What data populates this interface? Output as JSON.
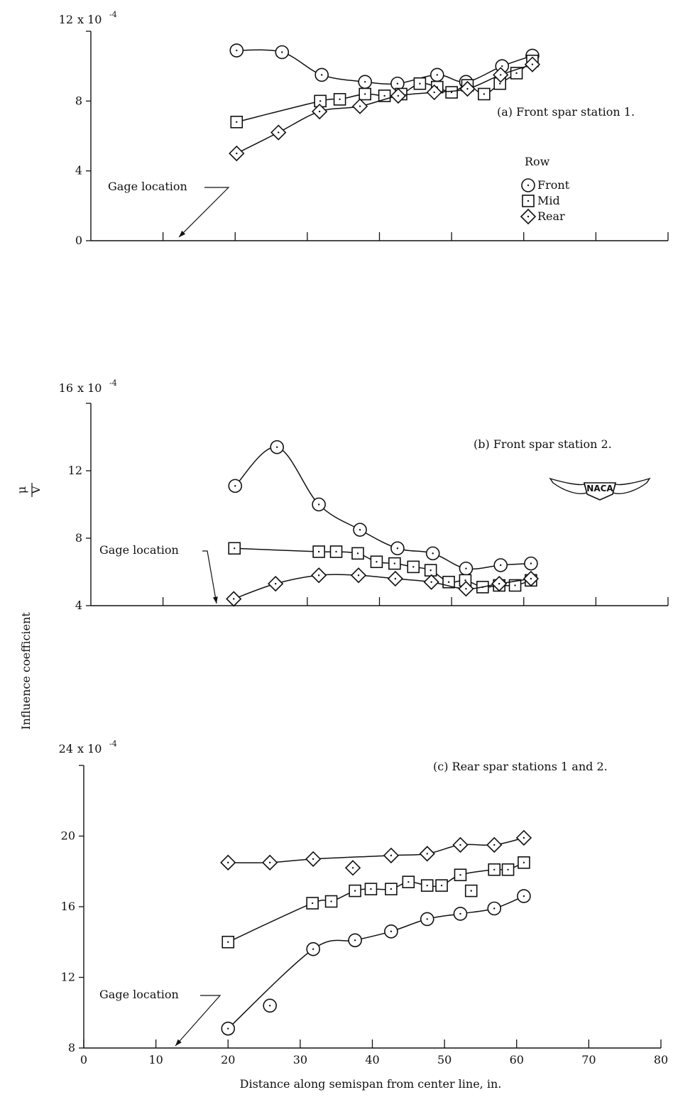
{
  "figure": {
    "ylabel": "Influence coefficient",
    "ylabel_fraction_num": "μ",
    "ylabel_fraction_den": "V",
    "xlabel": "Distance along semispan from center line, in.",
    "logo_text": "NACA"
  },
  "chart_data": [
    {
      "type": "line",
      "title": "(a) Front spar station 1.",
      "multiplier": "x 10",
      "exponent": "-4",
      "xlim": [
        0,
        80
      ],
      "ylim": [
        0,
        12
      ],
      "yticks": [
        0,
        4,
        8,
        12
      ],
      "ytick_labels": [
        "0",
        "4",
        "8",
        "12"
      ],
      "xticks": [
        10,
        20,
        30,
        40,
        50,
        60,
        70,
        80
      ],
      "annotation": {
        "text": "Gage location",
        "x": 13
      },
      "legend": {
        "title": "Row",
        "entries": [
          "Front",
          "Mid",
          "Rear"
        ],
        "placement": "right"
      },
      "series": [
        {
          "name": "Front",
          "marker": "circle",
          "x": [
            20.2,
            26.5,
            32,
            38,
            42.5,
            48,
            52,
            57,
            61.2
          ],
          "y": [
            10.9,
            10.8,
            9.5,
            9.1,
            9.0,
            9.5,
            9.1,
            10.0,
            10.6
          ]
        },
        {
          "name": "Mid",
          "marker": "square",
          "x": [
            20.2,
            31.8,
            34.5,
            38,
            40.7,
            43,
            45.6,
            48,
            50,
            52.2,
            54.5,
            56.7,
            59,
            61.2
          ],
          "y": [
            6.8,
            8.0,
            8.1,
            8.4,
            8.3,
            8.4,
            9.0,
            8.8,
            8.5,
            8.9,
            8.4,
            9.0,
            9.6,
            10.3
          ]
        },
        {
          "name": "Rear",
          "marker": "diamond",
          "x": [
            20.2,
            26,
            31.7,
            37.3,
            42.6,
            47.6,
            52.2,
            56.8,
            61.2
          ],
          "y": [
            5.0,
            6.2,
            7.4,
            7.7,
            8.3,
            8.5,
            8.7,
            9.5,
            10.1
          ]
        }
      ]
    },
    {
      "type": "line",
      "title": "(b) Front spar station 2.",
      "multiplier": "x 10",
      "exponent": "-4",
      "xlim": [
        0,
        80
      ],
      "ylim": [
        4,
        16
      ],
      "yticks": [
        4,
        8,
        12,
        16
      ],
      "ytick_labels": [
        "4",
        "8",
        "12",
        "16"
      ],
      "xticks": [
        10,
        20,
        30,
        40,
        50,
        60,
        70,
        80
      ],
      "annotation": {
        "text": "Gage location",
        "x": 18
      },
      "series": [
        {
          "name": "Front",
          "marker": "circle",
          "x": [
            20,
            25.8,
            31.6,
            37.3,
            42.5,
            47.4,
            52,
            56.8,
            61
          ],
          "y": [
            11.1,
            13.4,
            10.0,
            8.5,
            7.4,
            7.1,
            6.2,
            6.4,
            6.5
          ]
        },
        {
          "name": "Mid",
          "marker": "square",
          "x": [
            19.9,
            31.6,
            34,
            37,
            39.6,
            42.1,
            44.7,
            47.1,
            49.6,
            51.9,
            54.3,
            56.6,
            58.8,
            61
          ],
          "y": [
            7.4,
            7.2,
            7.2,
            7.1,
            6.6,
            6.5,
            6.3,
            6.1,
            5.4,
            5.5,
            5.1,
            5.2,
            5.2,
            5.5
          ]
        },
        {
          "name": "Rear",
          "marker": "diamond",
          "x": [
            19.8,
            25.6,
            31.6,
            37.1,
            42.2,
            47.2,
            52,
            56.6,
            61
          ],
          "y": [
            4.4,
            5.3,
            5.8,
            5.8,
            5.6,
            5.4,
            5.0,
            5.3,
            5.6
          ]
        }
      ]
    },
    {
      "type": "line",
      "title": "(c) Rear spar stations 1 and 2.",
      "multiplier": "x 10",
      "exponent": "-4",
      "xlim": [
        0,
        80
      ],
      "ylim": [
        8,
        24
      ],
      "yticks": [
        8,
        12,
        16,
        20,
        24
      ],
      "ytick_labels": [
        "8",
        "12",
        "16",
        "20",
        "24"
      ],
      "xticks": [
        0,
        10,
        20,
        30,
        40,
        50,
        60,
        70,
        80
      ],
      "xtick_labels": [
        "0",
        "10",
        "20",
        "30",
        "40",
        "50",
        "60",
        "70",
        "80"
      ],
      "annotation": {
        "text": "Gage location",
        "x": 12.5
      },
      "series": [
        {
          "name": "Front",
          "marker": "circle",
          "x": [
            20,
            25.8,
            31.8,
            37.6,
            42.6,
            47.6,
            52.2,
            56.9,
            61
          ],
          "y": [
            9.1,
            10.4,
            13.6,
            14.1,
            14.6,
            15.3,
            15.6,
            15.9,
            16.6
          ]
        },
        {
          "name": "Mid",
          "marker": "square",
          "x": [
            20,
            31.7,
            34.3,
            37.6,
            39.8,
            42.6,
            45,
            47.6,
            49.6,
            52.2,
            53.7,
            56.9,
            58.8,
            61
          ],
          "y": [
            14.0,
            16.2,
            16.3,
            16.9,
            17.0,
            17.0,
            17.4,
            17.2,
            17.2,
            17.8,
            16.9,
            18.1,
            18.1,
            18.5
          ]
        },
        {
          "name": "Rear",
          "marker": "diamond",
          "x": [
            20,
            25.8,
            31.8,
            37.3,
            42.6,
            47.6,
            52.2,
            56.9,
            61
          ],
          "y": [
            18.5,
            18.5,
            18.7,
            18.2,
            18.9,
            19.0,
            19.5,
            19.5,
            19.9
          ]
        }
      ]
    }
  ]
}
